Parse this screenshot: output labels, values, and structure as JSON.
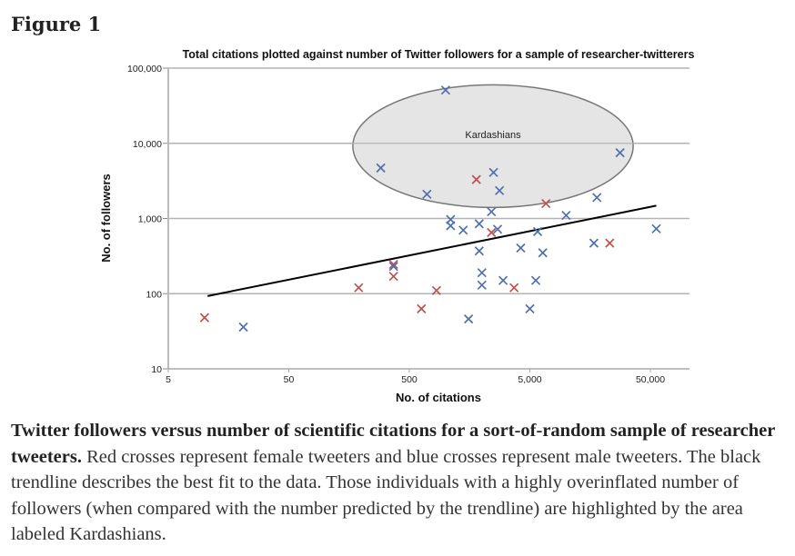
{
  "figure": {
    "label": "Figure 1"
  },
  "caption": {
    "bold": "Twitter followers versus number of scientific citations for a sort-of-random sample of researcher tweeters.",
    "text": " Red crosses represent female tweeters and blue crosses represent male tweeters. The black trendline describes the best fit to the data. Those individuals with a highly overinflated number of followers (when compared with the number predicted by the trendline) are highlighted by the area labeled Kardashians."
  },
  "colors": {
    "female": "#c0504d",
    "male": "#4f6fad",
    "trendline": "#000000",
    "ellipse_fill": "#e5e5e5",
    "ellipse_stroke": "#777777",
    "grid": "#b3b3b3"
  },
  "chart_data": {
    "type": "scatter",
    "title": "Total citations plotted against number of Twitter followers for a sample of researcher-twitterers",
    "xlabel": "No. of citations",
    "ylabel": "No. of followers",
    "xscale": "log",
    "yscale": "log",
    "xlim": [
      5,
      80000
    ],
    "ylim": [
      10,
      100000
    ],
    "xticks": [
      5,
      50,
      500,
      5000,
      50000
    ],
    "xtick_labels": [
      "5",
      "50",
      "500",
      "5,000",
      "50,000"
    ],
    "yticks": [
      10,
      100,
      1000,
      10000,
      100000
    ],
    "ytick_labels": [
      "10",
      "100",
      "1,000",
      "10,000",
      "100,000"
    ],
    "grid": "horizontal",
    "series": [
      {
        "name": "Female",
        "marker": "x",
        "color": "#c0504d",
        "points": [
          [
            10,
            48
          ],
          [
            1800,
            3300
          ],
          [
            6800,
            1580
          ],
          [
            2400,
            650
          ],
          [
            23000,
            470
          ],
          [
            370,
            245
          ],
          [
            370,
            170
          ],
          [
            190,
            120
          ],
          [
            840,
            110
          ],
          [
            630,
            63
          ],
          [
            3700,
            120
          ]
        ]
      },
      {
        "name": "Male",
        "marker": "x",
        "color": "#4f6fad",
        "points": [
          [
            21,
            36
          ],
          [
            290,
            4700
          ],
          [
            1000,
            51000
          ],
          [
            700,
            2100
          ],
          [
            2500,
            4100
          ],
          [
            2800,
            2350
          ],
          [
            28000,
            7500
          ],
          [
            18000,
            1900
          ],
          [
            10000,
            1100
          ],
          [
            1100,
            970
          ],
          [
            1100,
            800
          ],
          [
            1400,
            700
          ],
          [
            1900,
            850
          ],
          [
            2400,
            1230
          ],
          [
            2700,
            720
          ],
          [
            1900,
            370
          ],
          [
            4200,
            405
          ],
          [
            5800,
            670
          ],
          [
            6400,
            350
          ],
          [
            17000,
            470
          ],
          [
            56000,
            730
          ],
          [
            370,
            230
          ],
          [
            1550,
            46
          ],
          [
            2000,
            190
          ],
          [
            2000,
            130
          ],
          [
            3000,
            150
          ],
          [
            5600,
            150
          ],
          [
            5000,
            63
          ]
        ]
      }
    ],
    "trendline": {
      "label": "best fit",
      "from": [
        10.6,
        93
      ],
      "to": [
        56000,
        1480
      ]
    },
    "annotation": {
      "label": "Kardashians",
      "shape": "ellipse",
      "center": [
        2500,
        10000
      ],
      "x_extent": [
        170,
        36000
      ],
      "y_extent": [
        1400,
        60000
      ]
    }
  }
}
